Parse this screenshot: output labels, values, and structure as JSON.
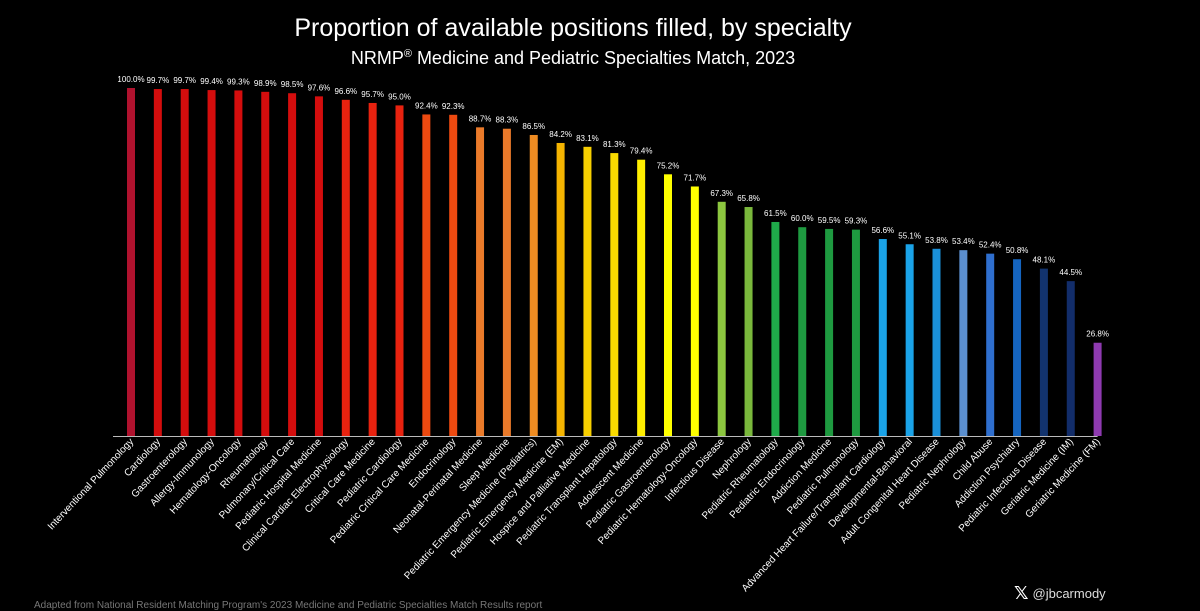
{
  "chart_data": {
    "type": "bar",
    "title": "Proportion of available positions filled, by specialty",
    "subtitle_prefix": "NRMP",
    "subtitle_mark": "®",
    "subtitle_suffix": " Medicine and Pediatric Specialties Match, 2023",
    "xlabel": "",
    "ylabel": "",
    "ylim": [
      0,
      100
    ],
    "grid": false,
    "categories": [
      "Interventional Pulmonology",
      "Cardiology",
      "Gastroenterology",
      "Allergy-Immunology",
      "Hematology-Oncology",
      "Rheumatology",
      "Pulmonary/Critical Care",
      "Pediatric Hospital Medicine",
      "Clinical Cardiac Electrophysiology",
      "Critical Care Medicine",
      "Pediatric Cardiology",
      "Pediatric Critical Care Medicine",
      "Endocrinology",
      "Neonatal-Perinatal Medicine",
      "Sleep Medicine",
      "Pediatric Emergency Medicine (Pediatrics)",
      "Pediatric Emergency Medicine (EM)",
      "Hospice and Palliative Medicine",
      "Pediatric Transplant Hepatology",
      "Adolescent Medicine",
      "Pediatric Gastroenterology",
      "Pediatric Hematology-Oncology",
      "Infectious Disease",
      "Nephrology",
      "Pediatric Rheumatology",
      "Pediatric Endocrinology",
      "Addiction Medicine",
      "Pediatric Pulmonology",
      "Advanced Heart Failure/Transplant Cardiology",
      "Developmental-Behavioral",
      "Adult Congenital Heart Disease",
      "Pediatric Nephrology",
      "Child Abuse",
      "Addiction Psychiatry",
      "Pediatric Infectious Disease",
      "Geriatric Medicine (IM)",
      "Geriatric Medicine (FM)"
    ],
    "values": [
      100.0,
      99.7,
      99.7,
      99.4,
      99.3,
      98.9,
      98.5,
      97.6,
      96.6,
      95.7,
      95.0,
      92.4,
      92.3,
      88.7,
      88.3,
      86.5,
      84.2,
      83.1,
      81.3,
      79.4,
      75.2,
      71.7,
      67.3,
      65.8,
      61.5,
      60.0,
      59.5,
      59.3,
      56.6,
      55.1,
      53.8,
      53.4,
      52.4,
      50.8,
      48.1,
      44.5,
      26.8
    ],
    "data_labels": [
      "100.0%",
      "99.7%",
      "99.7%",
      "99.4%",
      "99.3%",
      "98.9%",
      "98.5%",
      "97.6%",
      "96.6%",
      "95.7%",
      "95.0%",
      "92.4%",
      "92.3%",
      "88.7%",
      "88.3%",
      "86.5%",
      "84.2%",
      "83.1%",
      "81.3%",
      "79.4%",
      "75.2%",
      "71.7%",
      "67.3%",
      "65.8%",
      "61.5%",
      "60.0%",
      "59.5%",
      "59.3%",
      "56.6%",
      "55.1%",
      "53.8%",
      "53.4%",
      "52.4%",
      "50.8%",
      "48.1%",
      "44.5%",
      "26.8%"
    ],
    "colors": [
      "#b0122e",
      "#d40d0d",
      "#d40d0d",
      "#d40d0d",
      "#d40d0d",
      "#d40d0d",
      "#d40d0d",
      "#d40d0d",
      "#e8220f",
      "#e8220f",
      "#e8220f",
      "#ee4a10",
      "#ee4a10",
      "#ea7a2a",
      "#ea7a2a",
      "#ef8c22",
      "#f5b400",
      "#f7cf00",
      "#fadb00",
      "#ffee00",
      "#ffff00",
      "#ffff00",
      "#8cc63f",
      "#7ab83c",
      "#1faa4a",
      "#1e9a40",
      "#1e9a40",
      "#1e9a40",
      "#1aa3e8",
      "#1aa3e8",
      "#1a8fd8",
      "#5b8fcf",
      "#2f6fcf",
      "#1565c0",
      "#12336e",
      "#122d6a",
      "#8e3ab0"
    ]
  },
  "handle": {
    "icon": "x-logo-icon",
    "mark": "𝕏",
    "text": "@jbcarmody"
  },
  "source_note": "Adapted from National Resident Matching Program's 2023 Medicine and Pediatric Specialties Match Results report"
}
